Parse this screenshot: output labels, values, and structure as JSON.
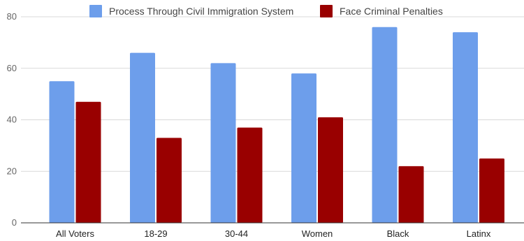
{
  "chart_data": {
    "type": "bar",
    "categories": [
      "All Voters",
      "18-29",
      "30-44",
      "Women",
      "Black",
      "Latinx"
    ],
    "series": [
      {
        "name": "Process Through Civil Immigration System",
        "color": "#6d9eeb",
        "values": [
          55,
          66,
          62,
          58,
          76,
          74
        ]
      },
      {
        "name": "Face Criminal Penalties",
        "color": "#990000",
        "values": [
          47,
          33,
          37,
          41,
          22,
          25
        ]
      }
    ],
    "ylim": [
      0,
      80
    ],
    "yticks": [
      0,
      20,
      40,
      60,
      80
    ],
    "grid": true,
    "legend": "top-center"
  }
}
